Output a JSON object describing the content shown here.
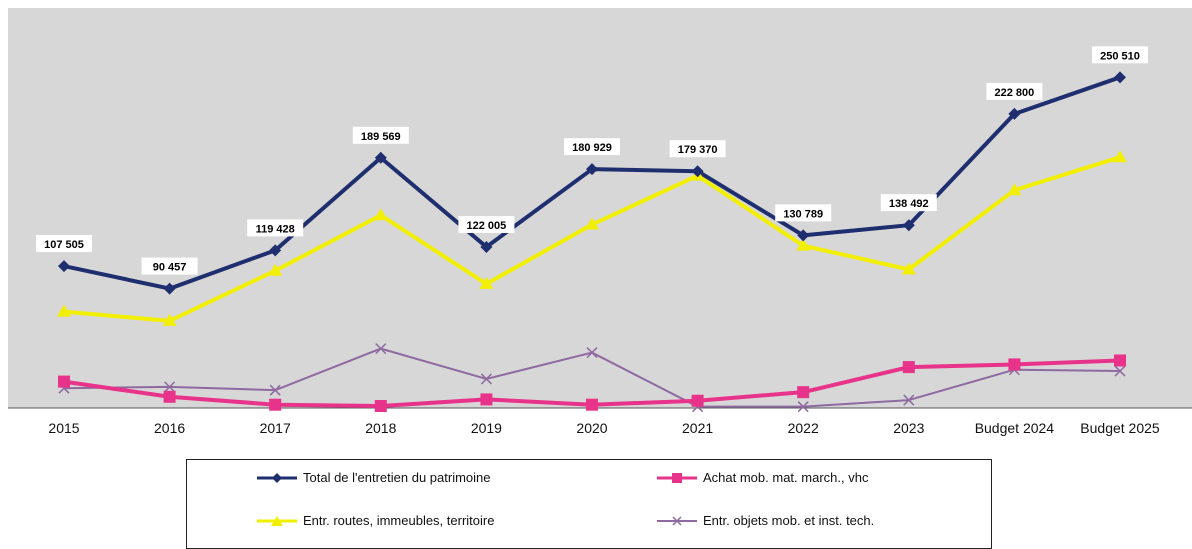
{
  "chart_data": {
    "type": "line",
    "categories": [
      "2015",
      "2016",
      "2017",
      "2018",
      "2019",
      "2020",
      "2021",
      "2022",
      "2023",
      "Budget 2024",
      "Budget 2025"
    ],
    "ylim": [
      0,
      260000
    ],
    "grid": false,
    "legend_position": "bottom",
    "series": [
      {
        "name": "Total de l'entretien du patrimoine",
        "color": "#1f2e6e",
        "marker": "diamond",
        "values": [
          107505,
          90457,
          119428,
          189569,
          122005,
          180929,
          179370,
          130789,
          138492,
          222800,
          250510
        ],
        "labels": [
          "107 505",
          "90 457",
          "119 428",
          "189 569",
          "122 005",
          "180 929",
          "179 370",
          "130 789",
          "138 492",
          "222 800",
          "250 510"
        ]
      },
      {
        "name": "Achat mob. mat. march., vhc",
        "color": "#e8338a",
        "marker": "square",
        "values": [
          20000,
          8500,
          2500,
          1500,
          6500,
          2500,
          5500,
          12000,
          31000,
          33000,
          36000
        ]
      },
      {
        "name": "Entr. routes, immeubles, territoire",
        "color": "#f2f000",
        "marker": "triangle",
        "values": [
          73000,
          66000,
          104000,
          146000,
          94000,
          139000,
          176000,
          123000,
          105000,
          165000,
          190000
        ]
      },
      {
        "name": "Entr. objets mob. et inst. tech.",
        "color": "#8e6aa0",
        "marker": "x",
        "values": [
          15000,
          16000,
          13500,
          45000,
          22000,
          42000,
          1000,
          1000,
          6000,
          29000,
          28000
        ]
      }
    ]
  }
}
